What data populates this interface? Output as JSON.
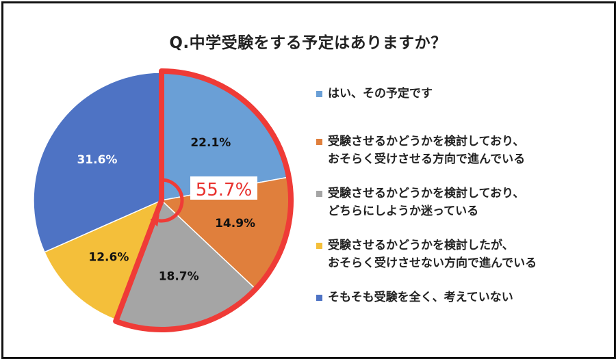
{
  "chart_data": {
    "type": "pie",
    "title": "Q.中学受験をする予定はありますか？",
    "series": [
      {
        "name": "はい、その予定です",
        "value": 22.1,
        "label": "22.1%",
        "color": "#6a9fd6"
      },
      {
        "name": "受験させるかどうかを検討しており、\nおそらく受けさせる方向で進んでいる",
        "value": 14.9,
        "label": "14.9%",
        "color": "#e07f3c"
      },
      {
        "name": "受験させるかどうかを検討しており、\nどちらにしようか迷っている",
        "value": 18.7,
        "label": "18.7%",
        "color": "#a5a5a5"
      },
      {
        "name": "受験させるかどうかを検討したが、\nおそらく受けさせない方向で進んでいる",
        "value": 12.6,
        "label": "12.6%",
        "color": "#f4bf3a"
      },
      {
        "name": "そもそも受験を全く、考えていない",
        "value": 31.6,
        "label": "31.6%",
        "color": "#4e73c4"
      }
    ],
    "annotation": {
      "text": "55.7%",
      "color": "#e8322e"
    },
    "legend": "right"
  }
}
